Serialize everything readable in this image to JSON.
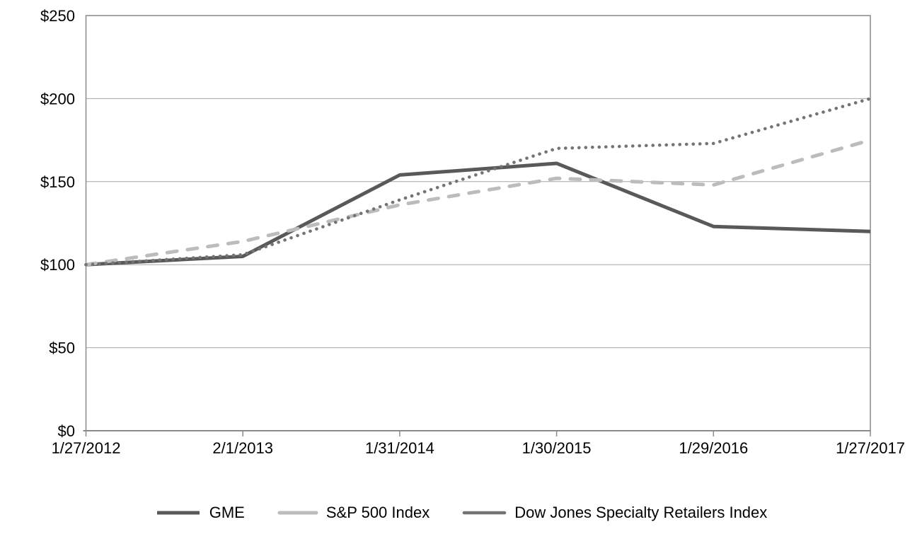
{
  "chart_data": {
    "type": "line",
    "title": "",
    "x_labels": [
      "1/27/2012",
      "2/1/2013",
      "1/31/2014",
      "1/30/2015",
      "1/29/2016",
      "1/27/2017"
    ],
    "y_ticks": [
      {
        "value": 0,
        "label": "$0"
      },
      {
        "value": 50,
        "label": "$50"
      },
      {
        "value": 100,
        "label": "$100"
      },
      {
        "value": 150,
        "label": "$150"
      },
      {
        "value": 200,
        "label": "$200"
      },
      {
        "value": 250,
        "label": "$250"
      }
    ],
    "ylim": [
      0,
      250
    ],
    "grid": true,
    "legend_position": "bottom-center",
    "series": [
      {
        "id": "gme",
        "name": "GME",
        "style": "solid",
        "color": "#595959",
        "values": [
          100,
          105,
          154,
          161,
          123,
          120
        ]
      },
      {
        "id": "sp500",
        "name": "S&P 500 Index",
        "style": "dashed",
        "color": "#bcbcbc",
        "values": [
          100,
          114,
          136,
          152,
          148,
          175
        ]
      },
      {
        "id": "djsr",
        "name": "Dow Jones Specialty Retailers Index",
        "style": "dotted",
        "color": "#747474",
        "values": [
          100,
          106,
          139,
          170,
          173,
          200
        ]
      }
    ],
    "colors": {
      "axis": "#8a8a8a",
      "grid": "#a6a6a6",
      "text": "#000000",
      "background": "#ffffff"
    }
  }
}
